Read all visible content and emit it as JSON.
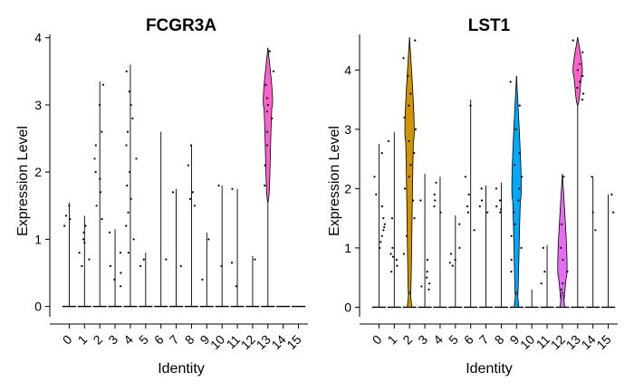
{
  "chart_data": [
    {
      "type": "violin",
      "title": "FCGR3A",
      "xlabel": "Identity",
      "ylabel": "Expression Level",
      "categories": [
        "0",
        "1",
        "2",
        "3",
        "4",
        "5",
        "6",
        "7",
        "8",
        "9",
        "10",
        "11",
        "12",
        "13",
        "14",
        "15"
      ],
      "ylim": [
        -0.1,
        4.05
      ],
      "yticks": [
        0,
        1,
        2,
        3,
        4
      ],
      "groups": [
        {
          "identity": "0",
          "max": 1.55,
          "fill": "#F8766D",
          "dots": [
            1.5,
            1.3,
            1.2,
            1.35
          ]
        },
        {
          "identity": "1",
          "max": 1.35,
          "fill": "#E7851E",
          "dots": [
            1.1,
            0.95,
            0.8,
            0.7,
            1.2,
            1.0,
            0.6
          ]
        },
        {
          "identity": "2",
          "max": 3.35,
          "fill": "#D09400",
          "dots": [
            3.3,
            2.6,
            2.2,
            1.9,
            1.5,
            1.3,
            2.0,
            1.7,
            3.0,
            2.4
          ]
        },
        {
          "identity": "3",
          "max": 1.15,
          "fill": "#B2A100",
          "dots": [
            1.1,
            0.8,
            0.5,
            0.6,
            0.4,
            0.3
          ]
        },
        {
          "identity": "4",
          "max": 3.6,
          "fill": "#7CAE00",
          "dots": [
            3.5,
            3.2,
            3.0,
            2.8,
            2.6,
            2.4,
            2.2,
            2.0,
            1.8,
            1.6,
            1.4,
            1.2,
            1.0,
            0.8
          ]
        },
        {
          "identity": "5",
          "max": 0.8,
          "fill": "#00BA38",
          "dots": [
            0.7,
            0.6
          ]
        },
        {
          "identity": "6",
          "max": 2.6,
          "fill": "#00C08B",
          "dots": [
            0.7
          ]
        },
        {
          "identity": "7",
          "max": 1.75,
          "fill": "#00BFC4",
          "dots": [
            1.7,
            0.6
          ]
        },
        {
          "identity": "8",
          "max": 2.4,
          "fill": "#00B4F0",
          "dots": [
            2.4,
            2.1,
            1.7,
            1.6,
            1.5
          ]
        },
        {
          "identity": "9",
          "max": 1.1,
          "fill": "#00A9FF",
          "dots": [
            1.0,
            0.4
          ]
        },
        {
          "identity": "10",
          "max": 1.8,
          "fill": "#619CFF",
          "dots": [
            1.8,
            0.6
          ]
        },
        {
          "identity": "11",
          "max": 1.75,
          "fill": "#C77CFF",
          "dots": [
            1.75,
            0.65,
            0.3
          ]
        },
        {
          "identity": "12",
          "max": 0.75,
          "fill": "#E76BF3",
          "dots": [
            0.7
          ]
        },
        {
          "identity": "13",
          "max": 3.85,
          "fill": "#FF61CC",
          "dots": [
            3.8,
            3.5,
            3.3,
            3.1,
            3.0,
            2.9,
            2.8,
            2.6,
            2.4,
            2.1,
            1.8
          ],
          "violin": true,
          "center": 2.95,
          "min": 1.55
        },
        {
          "identity": "14",
          "max": 0.0,
          "fill": "#FF67A4",
          "dots": []
        },
        {
          "identity": "15",
          "max": 0.0,
          "fill": "#F8766D",
          "dots": []
        }
      ]
    },
    {
      "type": "violin",
      "title": "LST1",
      "xlabel": "Identity",
      "ylabel": "Expression Level",
      "categories": [
        "0",
        "1",
        "2",
        "3",
        "4",
        "5",
        "6",
        "7",
        "8",
        "9",
        "10",
        "11",
        "12",
        "13",
        "14",
        "15"
      ],
      "ylim": [
        -0.1,
        4.6
      ],
      "yticks": [
        0,
        1,
        2,
        3,
        4
      ],
      "groups": [
        {
          "identity": "0",
          "max": 2.75,
          "fill": "#F8766D",
          "dots": [
            2.6,
            2.2,
            1.9,
            1.7,
            1.5,
            1.4,
            1.35,
            1.3,
            1.2,
            1.1,
            1.0
          ]
        },
        {
          "identity": "1",
          "max": 2.95,
          "fill": "#E7851E",
          "dots": [
            2.8,
            1.5,
            1.0,
            0.9,
            0.85,
            0.8,
            0.7,
            0.6
          ]
        },
        {
          "identity": "2",
          "max": 4.55,
          "fill": "#D09400",
          "dots": [
            4.5,
            4.2,
            3.9,
            3.6,
            3.4,
            3.2,
            3.0,
            2.8,
            2.6,
            2.4,
            2.2,
            2.0,
            1.8,
            1.5,
            1.2,
            0.9
          ],
          "violin": true,
          "center": 2.8,
          "min": 0.0
        },
        {
          "identity": "3",
          "max": 2.25,
          "fill": "#B2A100",
          "dots": [
            1.8,
            0.8,
            0.6,
            0.5,
            0.4,
            0.35,
            0.3
          ]
        },
        {
          "identity": "4",
          "max": 2.2,
          "fill": "#7CAE00",
          "dots": [
            2.1,
            1.9,
            1.8,
            1.7,
            1.6
          ]
        },
        {
          "identity": "5",
          "max": 1.55,
          "fill": "#00BA38",
          "dots": [
            1.4,
            1.0,
            0.9,
            0.8,
            0.75,
            0.7
          ]
        },
        {
          "identity": "6",
          "max": 3.5,
          "fill": "#00C08B",
          "dots": [
            3.4,
            2.2,
            1.9,
            1.7,
            1.6,
            1.3
          ]
        },
        {
          "identity": "7",
          "max": 2.05,
          "fill": "#00BFC4",
          "dots": [
            2.0,
            1.8,
            1.7,
            1.6
          ]
        },
        {
          "identity": "8",
          "max": 2.1,
          "fill": "#00B4F0",
          "dots": [
            2.0,
            1.8,
            1.7,
            1.65,
            1.6
          ]
        },
        {
          "identity": "9",
          "max": 3.9,
          "fill": "#00A9FF",
          "dots": [
            3.8,
            3.4,
            3.0,
            2.6,
            2.4,
            2.2,
            2.0,
            1.8,
            1.6,
            1.4,
            1.2,
            1.0,
            0.8,
            0.6
          ],
          "violin": true,
          "center": 1.8,
          "min": 0.0
        },
        {
          "identity": "10",
          "max": 0.3,
          "fill": "#619CFF",
          "dots": []
        },
        {
          "identity": "11",
          "max": 1.05,
          "fill": "#C77CFF",
          "dots": [
            1.0,
            0.6,
            0.4
          ]
        },
        {
          "identity": "12",
          "max": 2.25,
          "fill": "#E76BF3",
          "dots": [
            2.2,
            1.4,
            1.0,
            0.8,
            0.6,
            0.4,
            0.3
          ],
          "violin": true,
          "center": 0.5,
          "min": 0.0
        },
        {
          "identity": "13",
          "max": 4.55,
          "fill": "#FF61CC",
          "dots": [
            4.5,
            4.3,
            4.1,
            4.0,
            3.9,
            3.8,
            3.7,
            3.6,
            3.5
          ],
          "violin": true,
          "center": 3.9,
          "min": 3.4
        },
        {
          "identity": "14",
          "max": 2.2,
          "fill": "#FF67A4",
          "dots": [
            2.2,
            1.6,
            1.3
          ]
        },
        {
          "identity": "15",
          "max": 1.9,
          "fill": "#F8766D",
          "dots": [
            1.9,
            1.6
          ]
        }
      ]
    }
  ]
}
